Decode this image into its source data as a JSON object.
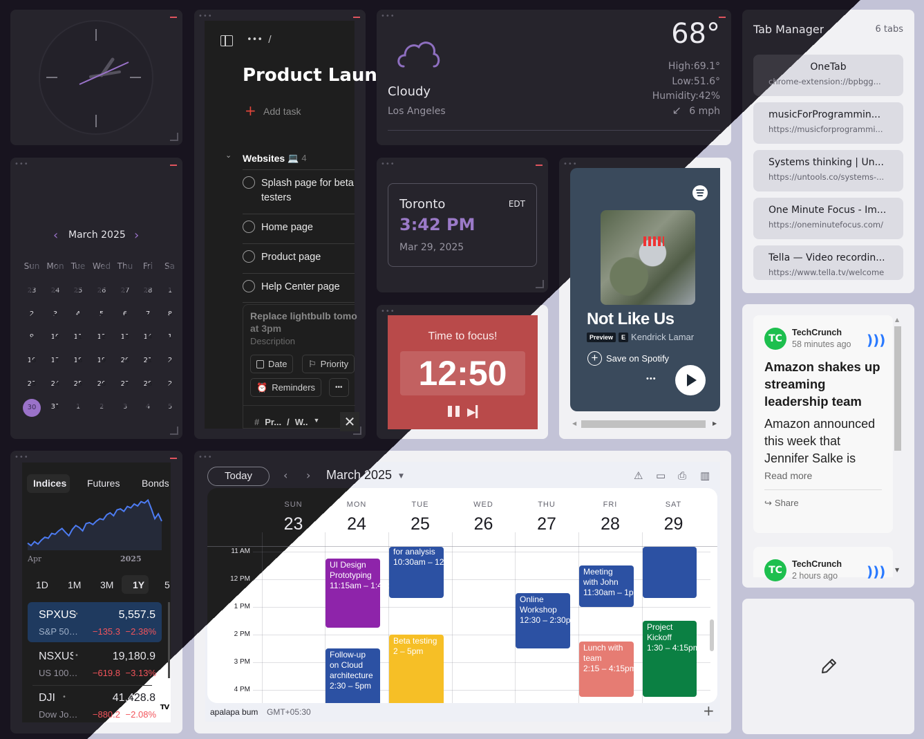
{
  "widget_chrome": {
    "menu": "•••"
  },
  "clock": {},
  "mini_calendar": {
    "title": "March 2025",
    "prev": "‹",
    "next": "›",
    "weekdays": [
      "Sun",
      "Mon",
      "Tue",
      "Wed",
      "Thu",
      "Fri",
      "Sa"
    ],
    "weeks": [
      [
        "23",
        "24",
        "25",
        "26",
        "27",
        "28",
        "1"
      ],
      [
        "2",
        "3",
        "4",
        "5",
        "6",
        "7",
        "8"
      ],
      [
        "9",
        "10",
        "11",
        "12",
        "13",
        "14",
        "1"
      ],
      [
        "16",
        "17",
        "18",
        "19",
        "20",
        "21",
        "2"
      ],
      [
        "23",
        "24",
        "25",
        "26",
        "27",
        "28",
        "2"
      ],
      [
        "30",
        "31",
        "1",
        "2",
        "3",
        "4",
        "5"
      ]
    ],
    "selected": "30",
    "accent": "#9a72c9"
  },
  "tasks": {
    "breadcrumb": "•••  /",
    "title": "Product Laun",
    "add_task": "Add task",
    "section": {
      "name": "Websites",
      "emoji": "💻",
      "count": "4"
    },
    "items": [
      "Splash page for beta testers",
      "Home page",
      "Product page",
      "Help Center page"
    ],
    "editor": {
      "title": "Replace lightbulb tomo",
      "overlap": "at 3pm",
      "description_placeholder": "Description",
      "date": "Date",
      "priority": "Priority",
      "reminders": "Reminders",
      "more": "•••",
      "project": "Pr...",
      "slash": "/",
      "section": "W.."
    }
  },
  "weather": {
    "condition": "Cloudy",
    "city": "Los Angeles",
    "temp": "68°",
    "high": "High:69.1°",
    "low": "Low:51.6°",
    "humidity": "Humidity:42%",
    "wind": "6 mph",
    "icon": "cloud-icon"
  },
  "world_clock": {
    "city": "Toronto",
    "tz": "EDT",
    "time": "3:42 PM",
    "date": "Mar 29, 2025"
  },
  "pomodoro": {
    "label": "Time to focus!",
    "time": "12:50",
    "color": "#b94a4a"
  },
  "spotify": {
    "track": "Not Like Us",
    "badge_preview": "Preview",
    "badge_explicit": "E",
    "artist": "Kendrick Lamar",
    "save": "Save on Spotify",
    "more": "•••"
  },
  "tab_manager": {
    "title": "Tab Manager",
    "count": "6 tabs",
    "tabs": [
      {
        "title": "OneTab",
        "url": "chrome-extension://bpbgg..."
      },
      {
        "title": "musicForProgrammin...",
        "url": "https://musicforprogrammi..."
      },
      {
        "title": "Systems thinking | Un...",
        "url": "https://untools.co/systems-..."
      },
      {
        "title": "One Minute Focus - Im...",
        "url": "https://oneminutefocus.com/"
      },
      {
        "title": "Tella — Video recordin...",
        "url": "https://www.tella.tv/welcome"
      }
    ]
  },
  "news": {
    "items": [
      {
        "source": "TechCrunch",
        "time": "58 minutes ago",
        "headline": "Amazon shakes up streaming leadership team",
        "summary": "Amazon announced this week that Jennifer Salke is",
        "read_more": "Read more",
        "share": "Share"
      },
      {
        "source": "TechCrunch",
        "time": "2 hours ago"
      }
    ]
  },
  "stocks": {
    "tabs": [
      "Indices",
      "Futures",
      "Bonds"
    ],
    "active_tab": "Indices",
    "axis": [
      "Apr",
      "2025"
    ],
    "ranges": [
      "1D",
      "1M",
      "3M",
      "1Y",
      "5"
    ],
    "active_range": "1Y",
    "sparkline": [
      5200,
      5150,
      5230,
      5180,
      5260,
      5320,
      5300,
      5400,
      5380,
      5450,
      5500,
      5420,
      5350,
      5480,
      5560,
      5520,
      5450,
      5600,
      5620,
      5580,
      5650,
      5700,
      5680,
      5780,
      5820,
      5760,
      5880,
      5900,
      5850,
      5950,
      5920,
      6000,
      5960,
      6050,
      6020,
      6080,
      5900,
      5700,
      5800,
      5650
    ],
    "rows": [
      {
        "symbol": "SPXUS",
        "name": "S&P 50…",
        "price": "5,557.5",
        "change": "−135.3",
        "pct": "−2.38%"
      },
      {
        "symbol": "NSXUS",
        "name": "US 100…",
        "price": "19,180.9",
        "change": "−619.8",
        "pct": "−3.13%"
      },
      {
        "symbol": "DJI",
        "name": "Dow Jo…",
        "price": "41,428.8",
        "change": "−880.2",
        "pct": "−2.08%"
      }
    ],
    "logo": "TV",
    "down_color": "#f2545b"
  },
  "calendar": {
    "today": "Today",
    "title": "March 2025",
    "days": [
      {
        "dow": "SUN",
        "date": "23"
      },
      {
        "dow": "MON",
        "date": "24"
      },
      {
        "dow": "TUE",
        "date": "25"
      },
      {
        "dow": "WED",
        "date": "26"
      },
      {
        "dow": "THU",
        "date": "27"
      },
      {
        "dow": "FRI",
        "date": "28"
      },
      {
        "dow": "SAT",
        "date": "29"
      }
    ],
    "hours": [
      "11 AM",
      "12 PM",
      "1 PM",
      "2 PM",
      "3 PM",
      "4 PM"
    ],
    "events": [
      {
        "day": 1,
        "title": "UI Design Prototyping",
        "time": "11:15am – 1:45pm",
        "start": 11.25,
        "end": 13.75,
        "color": "#8e24aa"
      },
      {
        "day": 1,
        "title": "Follow-up on Cloud architecture",
        "time": "2:30 – 5pm",
        "start": 14.5,
        "end": 17,
        "color": "#2c51a3"
      },
      {
        "day": 2,
        "title": "for analysis",
        "time": "10:30am – 12",
        "start": 10.5,
        "end": 12.67,
        "color": "#2c51a3"
      },
      {
        "day": 2,
        "title": "Beta testing",
        "time": "2 – 5pm",
        "start": 14,
        "end": 17,
        "color": "#f6bf26"
      },
      {
        "day": 4,
        "title": "Online Workshop",
        "time": "12:30 – 2:30pm",
        "start": 12.5,
        "end": 14.5,
        "color": "#2c51a3"
      },
      {
        "day": 5,
        "title": "Meeting with John",
        "time": "11:30am – 1pm",
        "start": 11.5,
        "end": 13,
        "color": "#2c51a3"
      },
      {
        "day": 5,
        "title": "Lunch with team",
        "time": "2:15 – 4:15pm",
        "start": 14.25,
        "end": 16.25,
        "color": "#e67c73"
      },
      {
        "day": 6,
        "title": "",
        "time": "",
        "start": 10,
        "end": 12.67,
        "color": "#2c51a3"
      },
      {
        "day": 6,
        "title": "Project Kickoff",
        "time": "1:30 – 4:15pm",
        "start": 13.5,
        "end": 16.25,
        "color": "#0b8043"
      }
    ],
    "user": "apalapa bum",
    "timezone": "GMT+05:30",
    "add": "+"
  }
}
